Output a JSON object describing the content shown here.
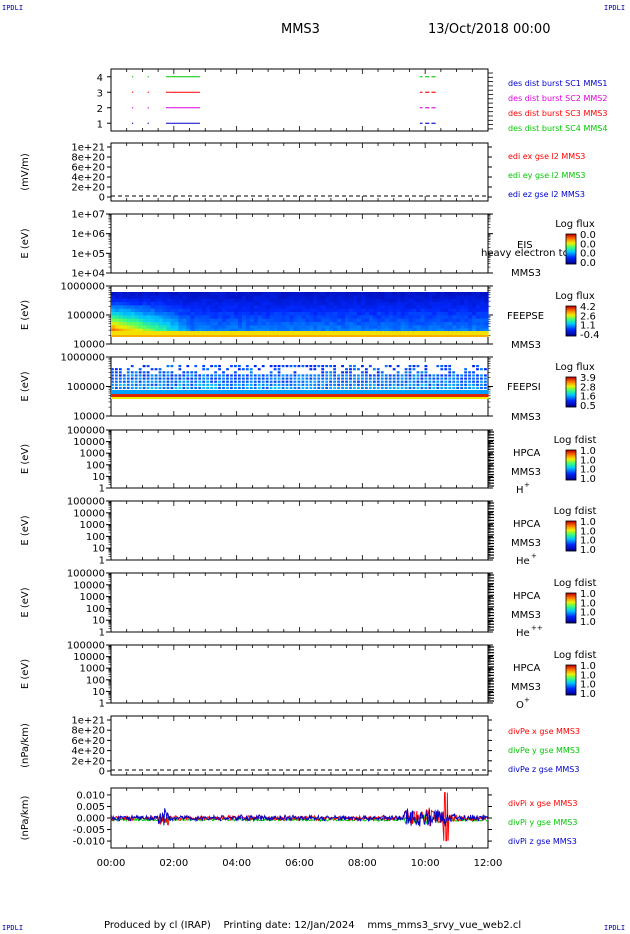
{
  "corner_label": "IPDLI",
  "header": {
    "spacecraft": "MMS3",
    "date": "13/Oct/2018 00:00"
  },
  "footer": {
    "producer": "Produced by cl (IRAP)",
    "printing": "Printing date: 12/Jan/2024",
    "file": "mms_mms3_srvy_vue_web2.cl"
  },
  "colors": {
    "red": "#ff0000",
    "green": "#00c800",
    "blue": "#0000cc",
    "magenta": "#dd00dd"
  },
  "chart_data": [
    {
      "type": "line",
      "panel": "burst",
      "xlim": [
        "00:00",
        "12:00"
      ],
      "ylim": [
        0.5,
        4.5
      ],
      "yticks": [
        "1",
        "2",
        "3",
        "4"
      ],
      "series": [
        {
          "name": "des dist burst SC1 MMS1",
          "color": "#0000cc",
          "level": 1,
          "segments": [
            [
              "00:40",
              "00:41"
            ],
            [
              "01:10",
              "01:11"
            ],
            [
              "01:45",
              "02:50"
            ],
            [
              "09:50",
              "09:55"
            ],
            [
              "10:00",
              "10:08"
            ],
            [
              "10:12",
              "10:20"
            ]
          ]
        },
        {
          "name": "des dist burst SC2 MMS2",
          "color": "#dd00dd",
          "level": 2,
          "segments": [
            [
              "00:40",
              "00:41"
            ],
            [
              "01:10",
              "01:11"
            ],
            [
              "01:45",
              "02:50"
            ],
            [
              "09:50",
              "09:55"
            ],
            [
              "10:00",
              "10:08"
            ],
            [
              "10:12",
              "10:20"
            ]
          ]
        },
        {
          "name": "des dist burst SC3 MMS3",
          "color": "#ff0000",
          "level": 3,
          "segments": [
            [
              "00:40",
              "00:41"
            ],
            [
              "01:10",
              "01:11"
            ],
            [
              "01:45",
              "02:50"
            ],
            [
              "09:50",
              "09:55"
            ],
            [
              "10:00",
              "10:08"
            ],
            [
              "10:12",
              "10:20"
            ]
          ]
        },
        {
          "name": "des dist burst SC4 MMS4",
          "color": "#00c800",
          "level": 4,
          "segments": [
            [
              "00:40",
              "00:41"
            ],
            [
              "01:10",
              "01:11"
            ],
            [
              "01:45",
              "02:50"
            ],
            [
              "09:50",
              "09:55"
            ],
            [
              "10:00",
              "10:08"
            ],
            [
              "10:12",
              "10:20"
            ]
          ]
        }
      ]
    },
    {
      "type": "line",
      "panel": "edi",
      "ylabel": "(mV/m)",
      "yticks": [
        "1e+21",
        "8e+20",
        "6e+20",
        "4e+20",
        "2e+20",
        "0"
      ],
      "legend": [
        {
          "name": "edi ex gse l2 MMS3",
          "color": "#ff0000"
        },
        {
          "name": "edi ey gse l2 MMS3",
          "color": "#00c800"
        },
        {
          "name": "edi ez gse l2 MMS3",
          "color": "#0000cc"
        }
      ]
    },
    {
      "type": "heatmap",
      "panel": "eis",
      "ylabel": "E (eV)",
      "yticks": [
        "1e+07",
        "1e+06",
        "1e+05",
        "1e+04"
      ],
      "instrument": "EIS",
      "spacecraft": "MMS3",
      "overlay": "heavy electron to",
      "colorbar": {
        "label": "Log flux",
        "ticks": [
          "0.0",
          "0.0",
          "0.0",
          "0.0"
        ]
      }
    },
    {
      "type": "heatmap",
      "panel": "feepse",
      "ylabel": "E (eV)",
      "yticks": [
        "1000000",
        "100000",
        "10000"
      ],
      "instrument": "FEEPSE",
      "spacecraft": "MMS3",
      "colorbar": {
        "label": "Log flux",
        "ticks": [
          "4.2",
          "2.6",
          "1.1",
          "-0.4"
        ]
      }
    },
    {
      "type": "heatmap",
      "panel": "feepsi",
      "ylabel": "E (eV)",
      "yticks": [
        "1000000",
        "100000",
        "10000"
      ],
      "instrument": "FEEPSI",
      "spacecraft": "MMS3",
      "colorbar": {
        "label": "Log flux",
        "ticks": [
          "3.9",
          "2.8",
          "1.6",
          "0.5"
        ]
      }
    },
    {
      "type": "heatmap",
      "panel": "hpca_h",
      "ylabel": "E (eV)",
      "yticks": [
        "100000",
        "10000",
        "1000",
        "100",
        "10",
        "1"
      ],
      "instrument": "HPCA",
      "spacecraft": "MMS3",
      "species": "H",
      "charge": "+",
      "colorbar": {
        "label": "Log fdist",
        "ticks": [
          "1.0",
          "1.0",
          "1.0",
          "1.0"
        ]
      }
    },
    {
      "type": "heatmap",
      "panel": "hpca_he",
      "ylabel": "E (eV)",
      "yticks": [
        "100000",
        "10000",
        "1000",
        "100",
        "10",
        "1"
      ],
      "instrument": "HPCA",
      "spacecraft": "MMS3",
      "species": "He",
      "charge": "+",
      "colorbar": {
        "label": "Log fdist",
        "ticks": [
          "1.0",
          "1.0",
          "1.0",
          "1.0"
        ]
      }
    },
    {
      "type": "heatmap",
      "panel": "hpca_hepp",
      "ylabel": "E (eV)",
      "yticks": [
        "100000",
        "10000",
        "1000",
        "100",
        "10",
        "1"
      ],
      "instrument": "HPCA",
      "spacecraft": "MMS3",
      "species": "He",
      "charge": "++",
      "colorbar": {
        "label": "Log fdist",
        "ticks": [
          "1.0",
          "1.0",
          "1.0",
          "1.0"
        ]
      }
    },
    {
      "type": "heatmap",
      "panel": "hpca_o",
      "ylabel": "E (eV)",
      "yticks": [
        "100000",
        "10000",
        "1000",
        "100",
        "10",
        "1"
      ],
      "instrument": "HPCA",
      "spacecraft": "MMS3",
      "species": "O",
      "charge": "+",
      "colorbar": {
        "label": "Log fdist",
        "ticks": [
          "1.0",
          "1.0",
          "1.0",
          "1.0"
        ]
      }
    },
    {
      "type": "line",
      "panel": "divpe",
      "ylabel": "(nPa/km)",
      "yticks": [
        "1e+21",
        "8e+20",
        "6e+20",
        "4e+20",
        "2e+20",
        "0"
      ],
      "legend": [
        {
          "name": "divPe x gse MMS3",
          "color": "#ff0000"
        },
        {
          "name": "divPe y gse MMS3",
          "color": "#00c800"
        },
        {
          "name": "divPe z gse MMS3",
          "color": "#0000cc"
        }
      ]
    },
    {
      "type": "line",
      "panel": "divpi",
      "ylabel": "(nPa/km)",
      "ylim": [
        -0.013,
        0.013
      ],
      "yticks": [
        "0.010",
        "0.005",
        "0.000",
        "-0.005",
        "-0.010"
      ],
      "xlim": [
        "00:00",
        "12:00"
      ],
      "xticks": [
        "00:00",
        "02:00",
        "04:00",
        "06:00",
        "08:00",
        "10:00",
        "12:00"
      ],
      "legend": [
        {
          "name": "divPi x gse MMS3",
          "color": "#ff0000"
        },
        {
          "name": "divPi y gse MMS3",
          "color": "#00c800"
        },
        {
          "name": "divPi z gse MMS3",
          "color": "#0000cc"
        }
      ]
    }
  ]
}
